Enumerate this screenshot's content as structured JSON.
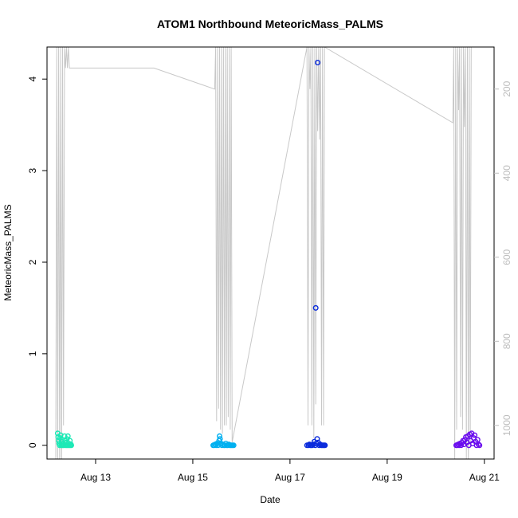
{
  "chart_data": {
    "type": "scatter",
    "title": "ATOM1 Northbound MeteoricMass_PALMS",
    "xlabel": "Date",
    "ylabel": "MeteoricMass_PALMS",
    "x_ticks": [
      "Aug 13",
      "Aug 15",
      "Aug 17",
      "Aug 19",
      "Aug 21"
    ],
    "x_tick_days": [
      13,
      15,
      17,
      19,
      21
    ],
    "xlim": [
      12.0,
      21.2
    ],
    "y_ticks": [
      0,
      1,
      2,
      3,
      4
    ],
    "ylim": [
      -0.15,
      4.35
    ],
    "y2_ticks": [
      200,
      400,
      600,
      800,
      1000
    ],
    "y2_reversed": true,
    "y2_label": "",
    "grid": false,
    "legend": "none",
    "colors": {
      "flight1": "#1de9b6",
      "flight2": "#00b0f0",
      "flight3": "#0a2bdc",
      "flight4": "#6a0dee",
      "pressure": "#c8c8c8",
      "axis": "#000000",
      "right_axis": "#bdbdbd"
    },
    "series": [
      {
        "color_key": "flight1",
        "points": [
          [
            12.22,
            0.13
          ],
          [
            12.23,
            0.09
          ],
          [
            12.24,
            0.05
          ],
          [
            12.25,
            0.02
          ],
          [
            12.26,
            0.0
          ],
          [
            12.27,
            0.08
          ],
          [
            12.28,
            0.11
          ],
          [
            12.29,
            0.0
          ],
          [
            12.3,
            0.04
          ],
          [
            12.31,
            0.0
          ],
          [
            12.32,
            0.06
          ],
          [
            12.33,
            0.0
          ],
          [
            12.34,
            0.02
          ],
          [
            12.35,
            0.0
          ],
          [
            12.36,
            0.1
          ],
          [
            12.37,
            0.05
          ],
          [
            12.38,
            0.0
          ],
          [
            12.39,
            0.03
          ],
          [
            12.4,
            0.0
          ],
          [
            12.41,
            0.07
          ],
          [
            12.42,
            0.0
          ],
          [
            12.43,
            0.1
          ],
          [
            12.44,
            0.0
          ],
          [
            12.45,
            0.02
          ],
          [
            12.46,
            0.0
          ],
          [
            12.47,
            0.05
          ],
          [
            12.48,
            0.0
          ],
          [
            12.49,
            0.01
          ],
          [
            12.5,
            0.0
          ]
        ]
      },
      {
        "color_key": "flight2",
        "points": [
          [
            15.42,
            0.0
          ],
          [
            15.44,
            0.0
          ],
          [
            15.46,
            0.01
          ],
          [
            15.48,
            0.0
          ],
          [
            15.5,
            0.02
          ],
          [
            15.52,
            0.0
          ],
          [
            15.54,
            0.05
          ],
          [
            15.55,
            0.1
          ],
          [
            15.56,
            0.07
          ],
          [
            15.58,
            0.02
          ],
          [
            15.6,
            0.0
          ],
          [
            15.62,
            0.01
          ],
          [
            15.64,
            0.0
          ],
          [
            15.66,
            0.0
          ],
          [
            15.68,
            0.02
          ],
          [
            15.7,
            0.0
          ],
          [
            15.72,
            0.0
          ],
          [
            15.74,
            0.01
          ],
          [
            15.76,
            0.0
          ],
          [
            15.78,
            0.0
          ],
          [
            15.8,
            0.0
          ],
          [
            15.82,
            0.0
          ],
          [
            15.84,
            0.0
          ]
        ]
      },
      {
        "color_key": "flight3",
        "points": [
          [
            17.35,
            0.0
          ],
          [
            17.38,
            0.0
          ],
          [
            17.4,
            0.01
          ],
          [
            17.42,
            0.0
          ],
          [
            17.44,
            0.0
          ],
          [
            17.46,
            0.0
          ],
          [
            17.48,
            0.01
          ],
          [
            17.5,
            0.04
          ],
          [
            17.52,
            0.0
          ],
          [
            17.53,
            1.5
          ],
          [
            17.54,
            0.02
          ],
          [
            17.56,
            0.07
          ],
          [
            17.57,
            4.18
          ],
          [
            17.58,
            0.03
          ],
          [
            17.6,
            0.0
          ],
          [
            17.62,
            0.01
          ],
          [
            17.64,
            0.0
          ],
          [
            17.66,
            0.0
          ],
          [
            17.68,
            0.0
          ],
          [
            17.7,
            0.0
          ],
          [
            17.72,
            0.0
          ]
        ]
      },
      {
        "color_key": "flight4",
        "points": [
          [
            20.42,
            0.0
          ],
          [
            20.44,
            0.0
          ],
          [
            20.46,
            0.01
          ],
          [
            20.48,
            0.0
          ],
          [
            20.5,
            0.02
          ],
          [
            20.52,
            0.0
          ],
          [
            20.54,
            0.03
          ],
          [
            20.56,
            0.05
          ],
          [
            20.58,
            0.01
          ],
          [
            20.6,
            0.06
          ],
          [
            20.62,
            0.09
          ],
          [
            20.64,
            0.03
          ],
          [
            20.66,
            0.1
          ],
          [
            20.68,
            0.0
          ],
          [
            20.7,
            0.12
          ],
          [
            20.72,
            0.05
          ],
          [
            20.74,
            0.13
          ],
          [
            20.76,
            0.02
          ],
          [
            20.78,
            0.08
          ],
          [
            20.8,
            0.11
          ],
          [
            20.82,
            0.04
          ],
          [
            20.84,
            0.0
          ],
          [
            20.86,
            0.06
          ],
          [
            20.88,
            0.01
          ],
          [
            20.9,
            0.0
          ]
        ]
      }
    ],
    "pressure_profile": {
      "x": [
        12.18,
        12.2,
        12.22,
        12.24,
        12.26,
        12.28,
        12.3,
        12.32,
        12.34,
        12.36,
        12.38,
        12.4,
        12.42,
        12.44,
        12.46,
        14.2,
        15.45,
        15.47,
        15.49,
        15.51,
        15.53,
        15.55,
        15.57,
        15.59,
        15.61,
        15.63,
        15.65,
        15.67,
        15.69,
        15.71,
        15.73,
        15.75,
        15.77,
        15.79,
        15.81,
        17.35,
        17.37,
        17.39,
        17.41,
        17.43,
        17.45,
        17.47,
        17.49,
        17.51,
        17.53,
        17.55,
        17.57,
        17.59,
        17.61,
        17.63,
        17.65,
        17.67,
        17.69,
        17.71,
        20.35,
        20.37,
        20.39,
        20.41,
        20.43,
        20.45,
        20.47,
        20.49,
        20.51,
        20.53,
        20.55,
        20.57,
        20.59,
        20.61,
        20.63,
        20.65,
        20.67,
        20.69,
        20.71,
        20.73
      ],
      "y": [
        1080,
        100,
        1110,
        100,
        1150,
        100,
        1160,
        100,
        1000,
        100,
        150,
        100,
        150,
        100,
        150,
        150,
        200,
        100,
        990,
        100,
        960,
        100,
        1010,
        100,
        1020,
        100,
        1000,
        100,
        1000,
        100,
        980,
        100,
        1010,
        100,
        1040,
        100,
        1000,
        100,
        200,
        100,
        1000,
        100,
        1030,
        100,
        950,
        100,
        300,
        100,
        320,
        100,
        1000,
        100,
        1000,
        100,
        280,
        100,
        1100,
        100,
        1010,
        100,
        250,
        100,
        980,
        100,
        1010,
        100,
        290,
        100,
        1080,
        100,
        1120,
        100,
        1050,
        100
      ]
    }
  }
}
